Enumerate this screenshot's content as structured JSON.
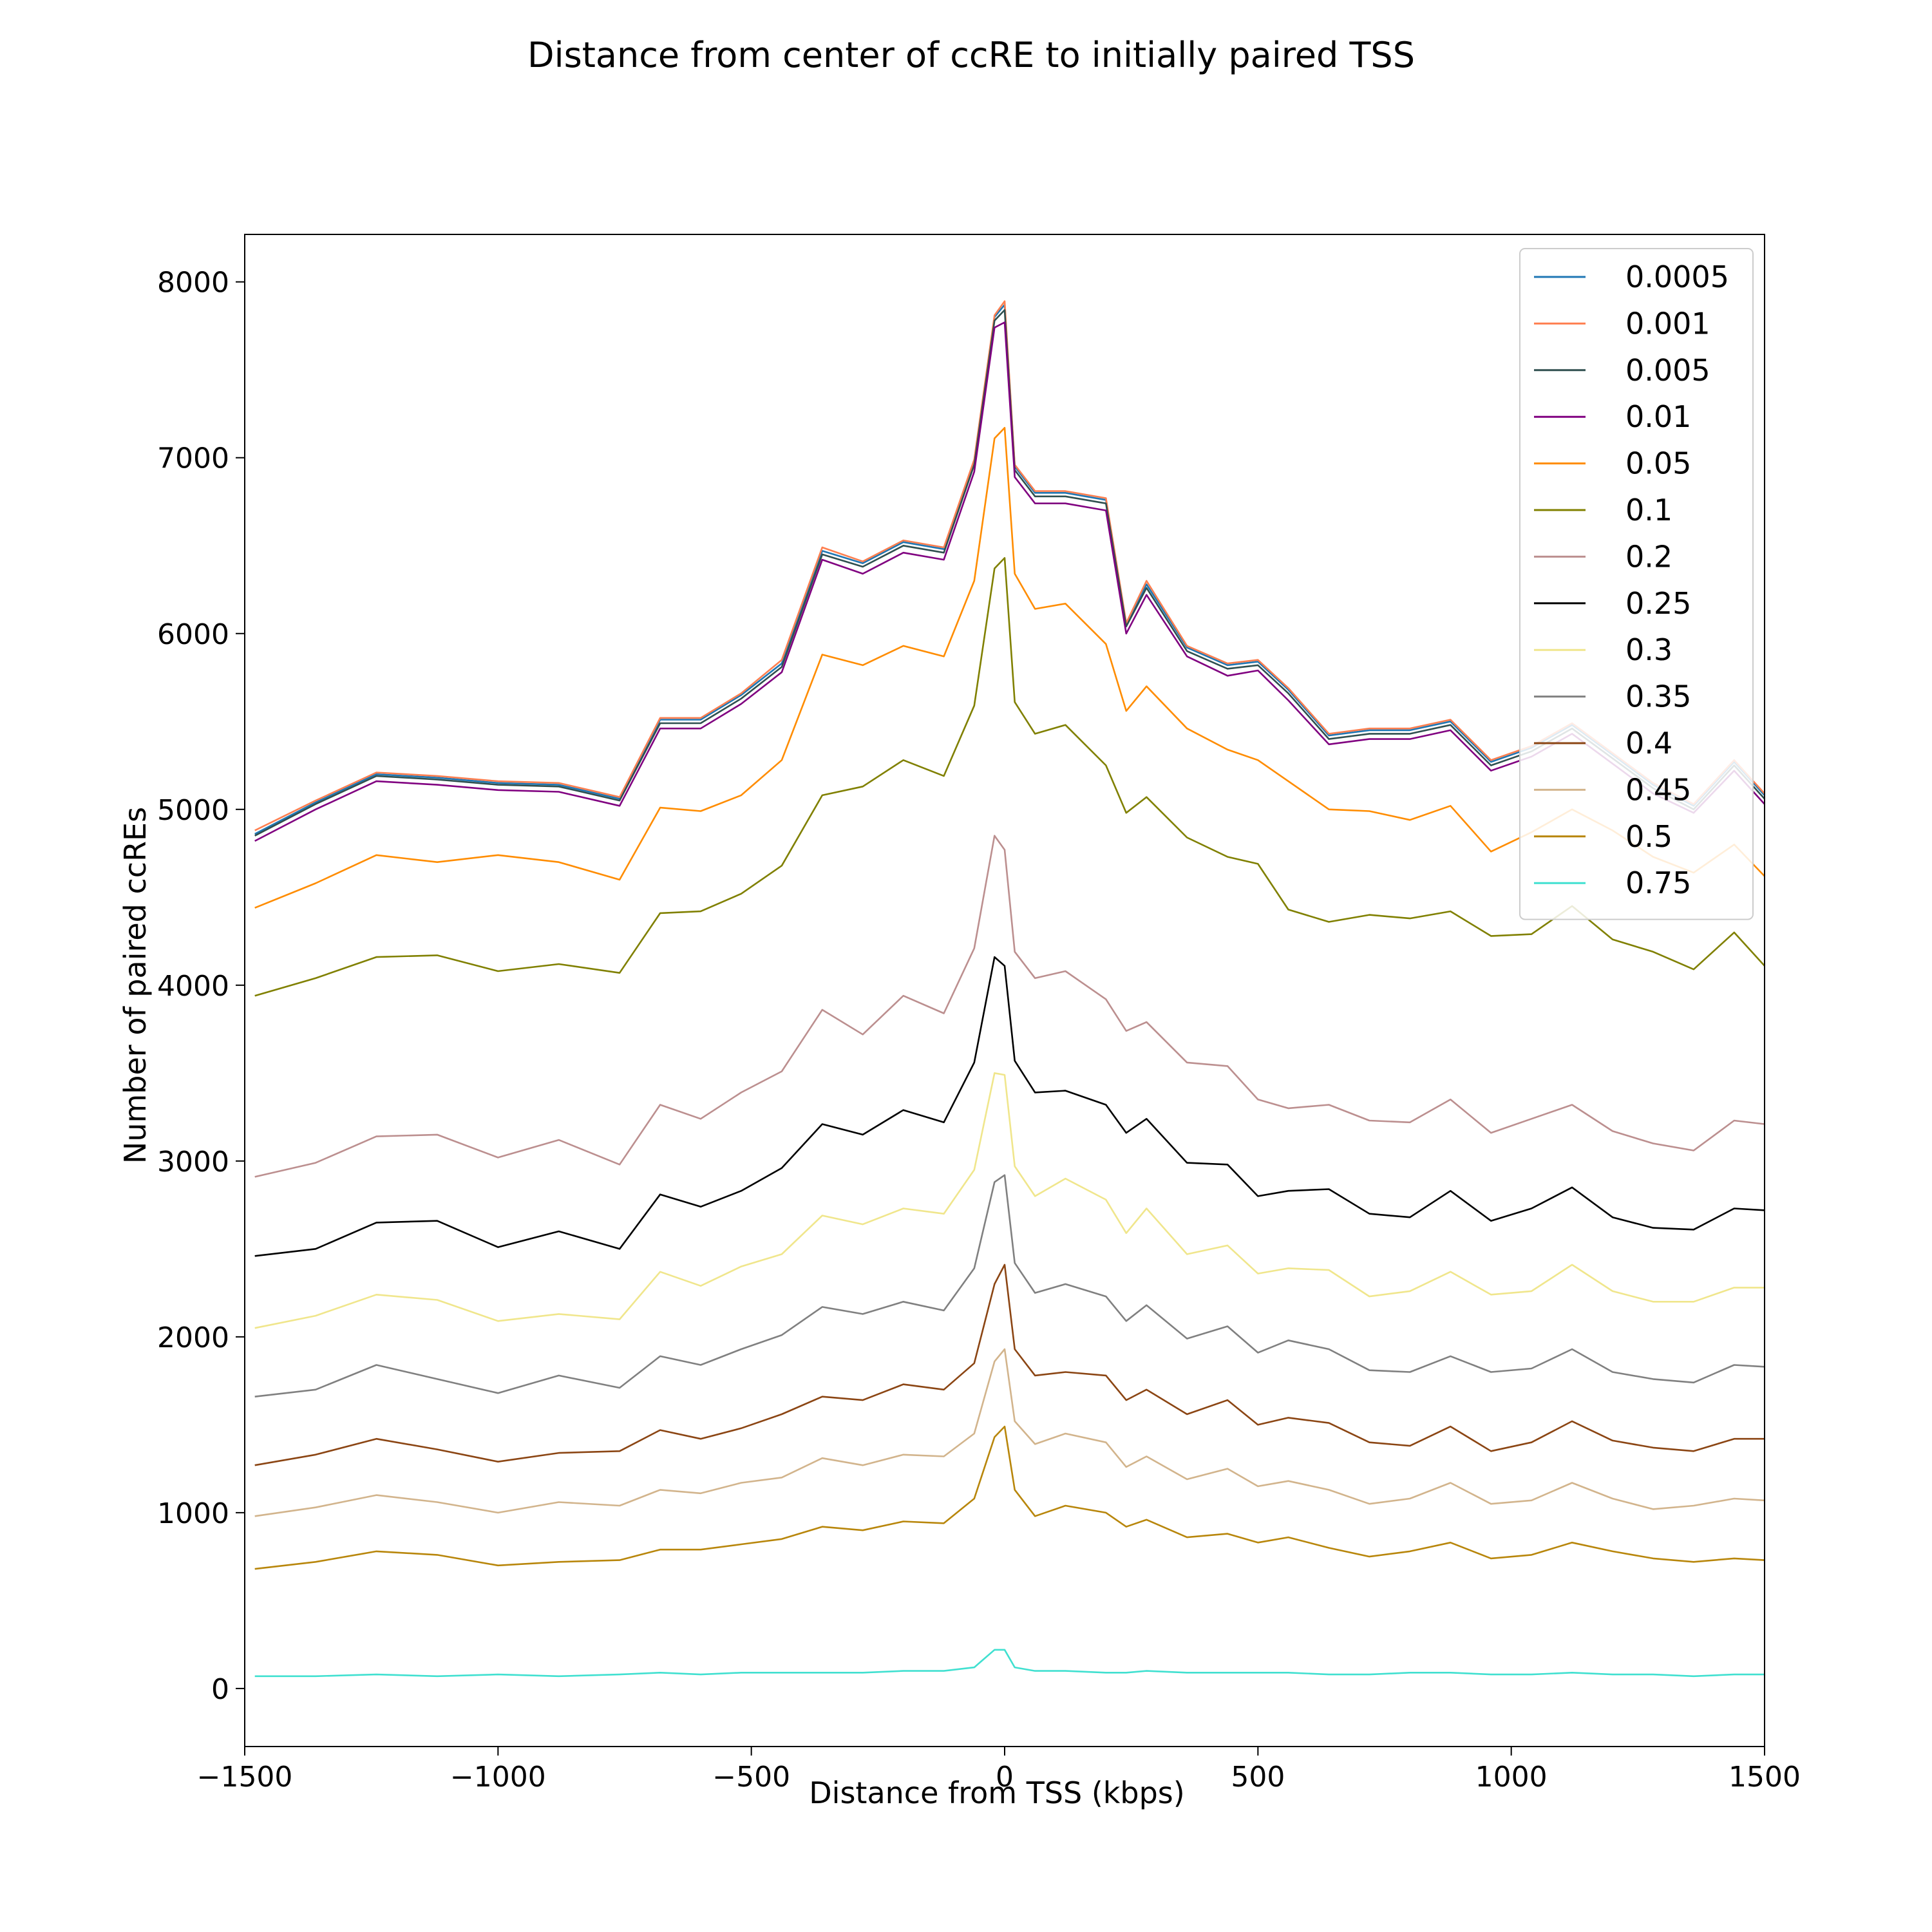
{
  "chart_data": {
    "type": "line",
    "title": "Distance from center of ccRE to initially paired TSS",
    "xlabel": "Distance from TSS (kbps)",
    "ylabel": "Number of paired ccREs",
    "xlim": [
      -1500,
      1500
    ],
    "ylim": [
      -330,
      8270
    ],
    "x_ticks": [
      -1500,
      -1000,
      -500,
      0,
      500,
      1000,
      1500
    ],
    "x_tick_labels": [
      "−1500",
      "−1000",
      "−500",
      "0",
      "500",
      "1000",
      "1500"
    ],
    "y_ticks": [
      0,
      1000,
      2000,
      3000,
      4000,
      5000,
      6000,
      7000,
      8000
    ],
    "y_tick_labels": [
      "0",
      "1000",
      "2000",
      "3000",
      "4000",
      "5000",
      "6000",
      "7000",
      "8000"
    ],
    "grid": false,
    "legend_position": "top-right",
    "x": [
      -1480,
      -1360,
      -1240,
      -1120,
      -1000,
      -880,
      -760,
      -680,
      -600,
      -520,
      -440,
      -360,
      -280,
      -200,
      -120,
      -60,
      -20,
      0,
      20,
      60,
      120,
      200,
      240,
      280,
      360,
      440,
      500,
      560,
      640,
      720,
      800,
      880,
      960,
      1040,
      1120,
      1200,
      1280,
      1360,
      1440,
      1500
    ],
    "series": [
      {
        "name": "0.0005",
        "color": "#1f77b4",
        "values": [
          4860,
          5040,
          5200,
          5180,
          5150,
          5140,
          5060,
          5510,
          5510,
          5650,
          5830,
          6470,
          6400,
          6520,
          6480,
          6980,
          7800,
          7870,
          6950,
          6800,
          6800,
          6760,
          6050,
          6280,
          5920,
          5820,
          5840,
          5680,
          5420,
          5450,
          5450,
          5500,
          5270,
          5350,
          5480,
          5310,
          5140,
          5020,
          5270,
          5080
        ]
      },
      {
        "name": "0.001",
        "color": "#ff7f50",
        "values": [
          4880,
          5050,
          5210,
          5190,
          5160,
          5150,
          5070,
          5520,
          5520,
          5660,
          5850,
          6490,
          6410,
          6530,
          6490,
          6990,
          7810,
          7890,
          6960,
          6810,
          6810,
          6770,
          6060,
          6300,
          5930,
          5830,
          5850,
          5690,
          5430,
          5460,
          5460,
          5510,
          5280,
          5360,
          5490,
          5320,
          5150,
          5030,
          5280,
          5090
        ]
      },
      {
        "name": "0.005",
        "color": "#2f4f4f",
        "values": [
          4850,
          5030,
          5190,
          5170,
          5140,
          5130,
          5050,
          5490,
          5490,
          5630,
          5810,
          6450,
          6380,
          6500,
          6460,
          6960,
          7780,
          7840,
          6930,
          6780,
          6780,
          6740,
          6040,
          6260,
          5900,
          5800,
          5820,
          5660,
          5400,
          5430,
          5430,
          5480,
          5250,
          5330,
          5460,
          5290,
          5120,
          5000,
          5250,
          5060
        ]
      },
      {
        "name": "0.01",
        "color": "#800080",
        "values": [
          4820,
          5000,
          5160,
          5140,
          5110,
          5100,
          5020,
          5460,
          5460,
          5600,
          5780,
          6420,
          6340,
          6460,
          6420,
          6920,
          7740,
          7770,
          6890,
          6740,
          6740,
          6700,
          6000,
          6220,
          5870,
          5760,
          5790,
          5620,
          5370,
          5400,
          5400,
          5450,
          5220,
          5300,
          5430,
          5260,
          5090,
          4980,
          5220,
          5030
        ]
      },
      {
        "name": "0.05",
        "color": "#ff8c00",
        "values": [
          4440,
          4580,
          4740,
          4700,
          4740,
          4700,
          4600,
          5010,
          4990,
          5080,
          5280,
          5880,
          5820,
          5930,
          5870,
          6300,
          7110,
          7170,
          6340,
          6140,
          6170,
          5940,
          5560,
          5700,
          5460,
          5340,
          5280,
          5160,
          5000,
          4990,
          4940,
          5020,
          4760,
          4870,
          5000,
          4880,
          4730,
          4640,
          4800,
          4620
        ]
      },
      {
        "name": "0.1",
        "color": "#808000",
        "values": [
          3940,
          4040,
          4160,
          4170,
          4080,
          4120,
          4070,
          4410,
          4420,
          4520,
          4680,
          5080,
          5130,
          5280,
          5190,
          5590,
          6370,
          6430,
          5610,
          5430,
          5480,
          5250,
          4980,
          5070,
          4840,
          4730,
          4690,
          4430,
          4360,
          4400,
          4380,
          4420,
          4280,
          4290,
          4450,
          4260,
          4190,
          4090,
          4300,
          4110
        ]
      },
      {
        "name": "0.2",
        "color": "#bc8f8f",
        "values": [
          2910,
          2990,
          3140,
          3150,
          3020,
          3120,
          2980,
          3320,
          3240,
          3390,
          3510,
          3860,
          3720,
          3940,
          3840,
          4210,
          4850,
          4770,
          4190,
          4040,
          4080,
          3920,
          3740,
          3790,
          3560,
          3540,
          3350,
          3300,
          3320,
          3230,
          3220,
          3350,
          3160,
          3240,
          3320,
          3170,
          3100,
          3060,
          3230,
          3210
        ]
      },
      {
        "name": "0.25",
        "color": "#000000",
        "values": [
          2460,
          2500,
          2650,
          2660,
          2510,
          2600,
          2500,
          2810,
          2740,
          2830,
          2960,
          3210,
          3150,
          3290,
          3220,
          3560,
          4160,
          4110,
          3570,
          3390,
          3400,
          3320,
          3160,
          3240,
          2990,
          2980,
          2800,
          2830,
          2840,
          2700,
          2680,
          2830,
          2660,
          2730,
          2850,
          2680,
          2620,
          2610,
          2730,
          2720
        ]
      },
      {
        "name": "0.3",
        "color": "#f0e68c",
        "values": [
          2050,
          2120,
          2240,
          2210,
          2090,
          2130,
          2100,
          2370,
          2290,
          2400,
          2470,
          2690,
          2640,
          2730,
          2700,
          2950,
          3500,
          3490,
          2970,
          2800,
          2900,
          2780,
          2590,
          2730,
          2470,
          2520,
          2360,
          2390,
          2380,
          2230,
          2260,
          2370,
          2240,
          2260,
          2410,
          2260,
          2200,
          2200,
          2280,
          2280
        ]
      },
      {
        "name": "0.35",
        "color": "#808080",
        "values": [
          1660,
          1700,
          1840,
          1760,
          1680,
          1780,
          1710,
          1890,
          1840,
          1930,
          2010,
          2170,
          2130,
          2200,
          2150,
          2390,
          2880,
          2920,
          2420,
          2250,
          2300,
          2230,
          2090,
          2180,
          1990,
          2060,
          1910,
          1980,
          1930,
          1810,
          1800,
          1890,
          1800,
          1820,
          1930,
          1800,
          1760,
          1740,
          1840,
          1830
        ]
      },
      {
        "name": "0.4",
        "color": "#8b4513",
        "values": [
          1270,
          1330,
          1420,
          1360,
          1290,
          1340,
          1350,
          1470,
          1420,
          1480,
          1560,
          1660,
          1640,
          1730,
          1700,
          1850,
          2300,
          2410,
          1930,
          1780,
          1800,
          1780,
          1640,
          1700,
          1560,
          1640,
          1500,
          1540,
          1510,
          1400,
          1380,
          1490,
          1350,
          1400,
          1520,
          1410,
          1370,
          1350,
          1420,
          1420
        ]
      },
      {
        "name": "0.45",
        "color": "#d2b48c",
        "values": [
          980,
          1030,
          1100,
          1060,
          1000,
          1060,
          1040,
          1130,
          1110,
          1170,
          1200,
          1310,
          1270,
          1330,
          1320,
          1450,
          1860,
          1930,
          1520,
          1390,
          1450,
          1400,
          1260,
          1320,
          1190,
          1250,
          1150,
          1180,
          1130,
          1050,
          1080,
          1170,
          1050,
          1070,
          1170,
          1080,
          1020,
          1040,
          1080,
          1070
        ]
      },
      {
        "name": "0.5",
        "color": "#b8860b",
        "values": [
          680,
          720,
          780,
          760,
          700,
          720,
          730,
          790,
          790,
          820,
          850,
          920,
          900,
          950,
          940,
          1080,
          1430,
          1490,
          1130,
          980,
          1040,
          1000,
          920,
          960,
          860,
          880,
          830,
          860,
          800,
          750,
          780,
          830,
          740,
          760,
          830,
          780,
          740,
          720,
          740,
          730
        ]
      },
      {
        "name": "0.75",
        "color": "#40e0d0",
        "values": [
          70,
          70,
          80,
          70,
          80,
          70,
          80,
          90,
          80,
          90,
          90,
          90,
          90,
          100,
          100,
          120,
          220,
          220,
          120,
          100,
          100,
          90,
          90,
          100,
          90,
          90,
          90,
          90,
          80,
          80,
          90,
          90,
          80,
          80,
          90,
          80,
          80,
          70,
          80,
          80
        ]
      }
    ]
  }
}
